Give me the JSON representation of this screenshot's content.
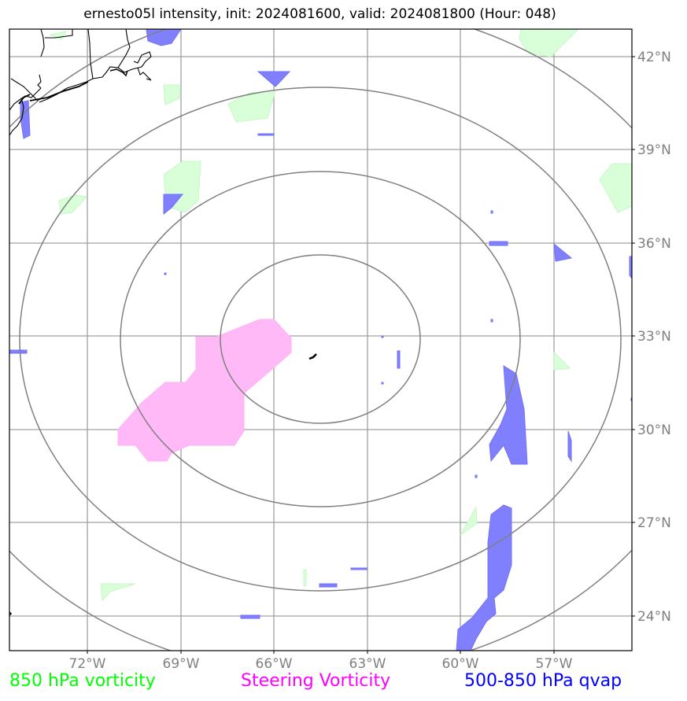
{
  "title": "ernesto05l intensity, init: 2024081600, valid: 2024081800 (Hour: 048)",
  "lat_labels": [
    "42°N",
    "39°N",
    "36°N",
    "33°N",
    "30°N",
    "27°N",
    "24°N"
  ],
  "lon_labels": [
    "72°W",
    "69°W",
    "66°W",
    "63°W",
    "60°W",
    "57°W"
  ],
  "legend": {
    "vorticity_850": "850 hPa vorticity",
    "steering_vorticity": "Steering Vorticity",
    "qvap": "500-850 hPa qvap"
  },
  "colors": {
    "vorticity_850": "#00ff00",
    "steering_vorticity": "#ff00ff",
    "qvap": "#0000ff",
    "range_rings": "#808080",
    "gridlines": "#a0a0a0"
  }
}
